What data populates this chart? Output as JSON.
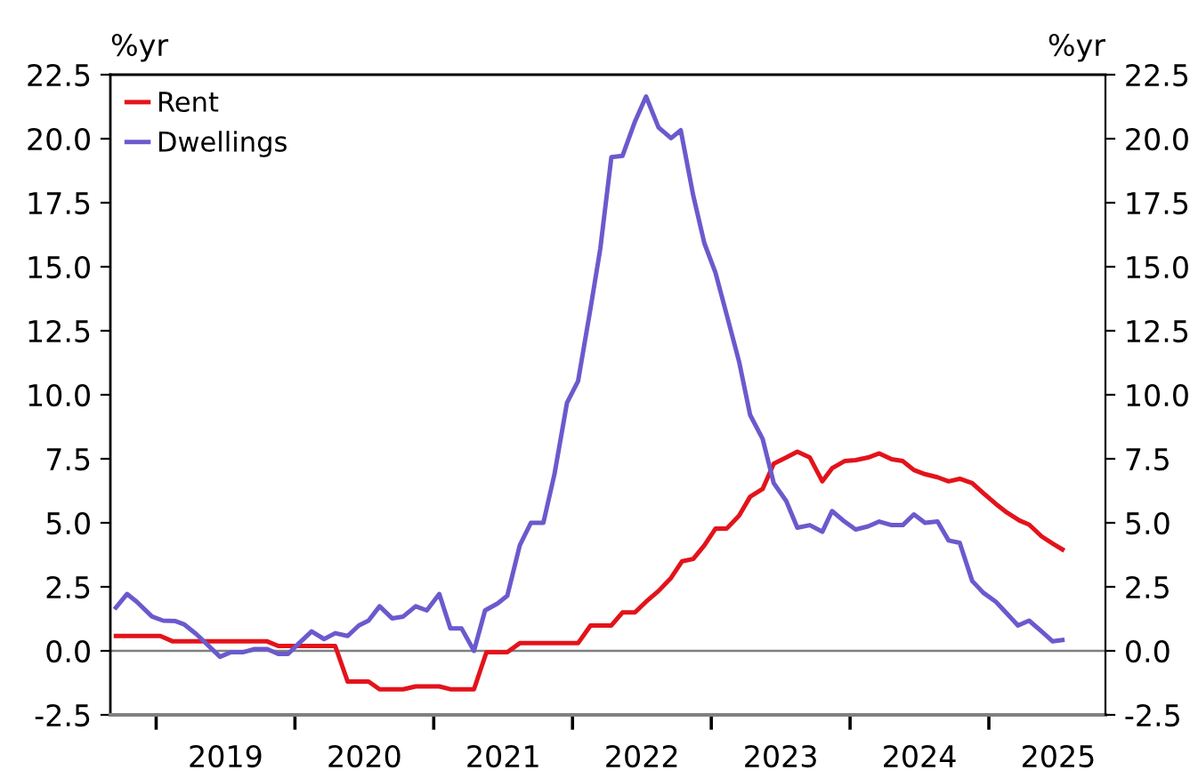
{
  "chart_data": {
    "type": "line",
    "ylabel": "%yr",
    "y2label": "%yr",
    "xlim": [
      2018.67,
      2025.84
    ],
    "xticks": [
      {
        "value": 2019,
        "label": null
      },
      {
        "value": 2019.5,
        "label": "2019"
      },
      {
        "value": 2020,
        "label": null
      },
      {
        "value": 2020.5,
        "label": "2020"
      },
      {
        "value": 2021,
        "label": null
      },
      {
        "value": 2021.5,
        "label": "2021"
      },
      {
        "value": 2022,
        "label": null
      },
      {
        "value": 2022.5,
        "label": "2022"
      },
      {
        "value": 2023,
        "label": null
      },
      {
        "value": 2023.5,
        "label": "2023"
      },
      {
        "value": 2024,
        "label": null
      },
      {
        "value": 2024.5,
        "label": "2024"
      },
      {
        "value": 2025,
        "label": null
      },
      {
        "value": 2025.5,
        "label": "2025"
      }
    ],
    "ylim": [
      -2.5,
      22.5
    ],
    "yticks": [
      {
        "value": -2.5,
        "label": "-2.5"
      },
      {
        "value": 0,
        "label": "0.0"
      },
      {
        "value": 2.5,
        "label": "2.5"
      },
      {
        "value": 5,
        "label": "5.0"
      },
      {
        "value": 7.5,
        "label": "7.5"
      },
      {
        "value": 10,
        "label": "10.0"
      },
      {
        "value": 12.5,
        "label": "12.5"
      },
      {
        "value": 15,
        "label": "15.0"
      },
      {
        "value": 17.5,
        "label": "17.5"
      },
      {
        "value": 20,
        "label": "20.0"
      },
      {
        "value": 22.5,
        "label": "22.5"
      }
    ],
    "y2lim": [
      -2.5,
      22.5
    ],
    "y2ticks": [
      {
        "value": -2.5,
        "label": "-2.5"
      },
      {
        "value": 0,
        "label": "0.0"
      },
      {
        "value": 2.5,
        "label": "2.5"
      },
      {
        "value": 5,
        "label": "5.0"
      },
      {
        "value": 7.5,
        "label": "7.5"
      },
      {
        "value": 10,
        "label": "10.0"
      },
      {
        "value": 12.5,
        "label": "12.5"
      },
      {
        "value": 15,
        "label": "15.0"
      },
      {
        "value": 17.5,
        "label": "17.5"
      },
      {
        "value": 20,
        "label": "20.0"
      },
      {
        "value": 22.5,
        "label": "22.5"
      }
    ],
    "ref_lines": [
      {
        "axis": "y",
        "value": 0,
        "label": null,
        "color": "#808080"
      }
    ],
    "grid": false,
    "legend": "top left",
    "marker": "none",
    "line_style": "solid",
    "series": [
      {
        "name": "Rent",
        "color": "#e3131b",
        "x": [
          2018.71,
          2019.03,
          2019.12,
          2019.8,
          2019.88,
          2020.29,
          2020.38,
          2020.53,
          2020.61,
          2020.78,
          2020.87,
          2021.04,
          2021.12,
          2021.29,
          2021.38,
          2021.53,
          2021.62,
          2022.04,
          2022.13,
          2022.28,
          2022.36,
          2022.45,
          2022.53,
          2022.62,
          2022.71,
          2022.79,
          2022.87,
          2022.95,
          2023.03,
          2023.11,
          2023.2,
          2023.28,
          2023.37,
          2023.45,
          2023.54,
          2023.62,
          2023.71,
          2023.8,
          2023.87,
          2023.96,
          2024.04,
          2024.13,
          2024.21,
          2024.3,
          2024.38,
          2024.46,
          2024.54,
          2024.63,
          2024.71,
          2024.79,
          2024.88,
          2024.96,
          2025.05,
          2025.13,
          2025.22,
          2025.29,
          2025.38,
          2025.46,
          2025.53
        ],
        "values": [
          0.58,
          0.58,
          0.37,
          0.37,
          0.19,
          0.19,
          -1.2,
          -1.2,
          -1.5,
          -1.5,
          -1.39,
          -1.39,
          -1.5,
          -1.5,
          -0.05,
          -0.05,
          0.3,
          0.3,
          0.99,
          0.99,
          1.5,
          1.5,
          1.92,
          2.34,
          2.85,
          3.5,
          3.59,
          4.12,
          4.77,
          4.77,
          5.28,
          6.02,
          6.32,
          7.31,
          7.55,
          7.78,
          7.55,
          6.62,
          7.13,
          7.41,
          7.45,
          7.55,
          7.71,
          7.48,
          7.41,
          7.06,
          6.9,
          6.78,
          6.62,
          6.72,
          6.55,
          6.16,
          5.74,
          5.4,
          5.09,
          4.93,
          4.47,
          4.19,
          3.96
        ]
      },
      {
        "name": "Dwellings",
        "color": "#6a5acd",
        "x": [
          2018.71,
          2018.79,
          2018.86,
          2018.97,
          2019.05,
          2019.14,
          2019.2,
          2019.29,
          2019.46,
          2019.54,
          2019.63,
          2019.71,
          2019.8,
          2019.88,
          2019.95,
          2020.03,
          2020.12,
          2020.21,
          2020.29,
          2020.38,
          2020.46,
          2020.53,
          2020.61,
          2020.7,
          2020.78,
          2020.87,
          2020.95,
          2021.04,
          2021.12,
          2021.2,
          2021.29,
          2021.37,
          2021.46,
          2021.53,
          2021.62,
          2021.7,
          2021.79,
          2021.87,
          2021.96,
          2022.04,
          2022.13,
          2022.2,
          2022.28,
          2022.36,
          2022.45,
          2022.53,
          2022.62,
          2022.71,
          2022.78,
          2022.87,
          2022.95,
          2023.03,
          2023.11,
          2023.2,
          2023.28,
          2023.37,
          2023.45,
          2023.54,
          2023.62,
          2023.71,
          2023.8,
          2023.87,
          2023.96,
          2024.04,
          2024.13,
          2024.21,
          2024.3,
          2024.38,
          2024.46,
          2024.54,
          2024.63,
          2024.71,
          2024.79,
          2024.88,
          2024.96,
          2025.05,
          2025.13,
          2025.21,
          2025.29,
          2025.38,
          2025.46,
          2025.53
        ],
        "values": [
          1.69,
          2.22,
          1.92,
          1.34,
          1.18,
          1.16,
          1.04,
          0.65,
          -0.23,
          -0.05,
          -0.05,
          0.07,
          0.07,
          -0.12,
          -0.12,
          0.3,
          0.76,
          0.46,
          0.69,
          0.58,
          0.99,
          1.18,
          1.74,
          1.27,
          1.34,
          1.74,
          1.58,
          2.22,
          0.88,
          0.88,
          0.0,
          1.58,
          1.85,
          2.15,
          4.12,
          5.0,
          5.0,
          6.9,
          9.68,
          10.53,
          13.38,
          15.7,
          19.28,
          19.33,
          20.67,
          21.65,
          20.44,
          20.02,
          20.33,
          17.78,
          15.92,
          14.77,
          13.15,
          11.3,
          9.21,
          8.28,
          6.55,
          5.85,
          4.81,
          4.91,
          4.65,
          5.46,
          5.05,
          4.74,
          4.86,
          5.05,
          4.91,
          4.91,
          5.33,
          5.0,
          5.05,
          4.31,
          4.22,
          2.73,
          2.27,
          1.92,
          1.46,
          0.99,
          1.18,
          0.76,
          0.37,
          0.42
        ]
      }
    ]
  }
}
